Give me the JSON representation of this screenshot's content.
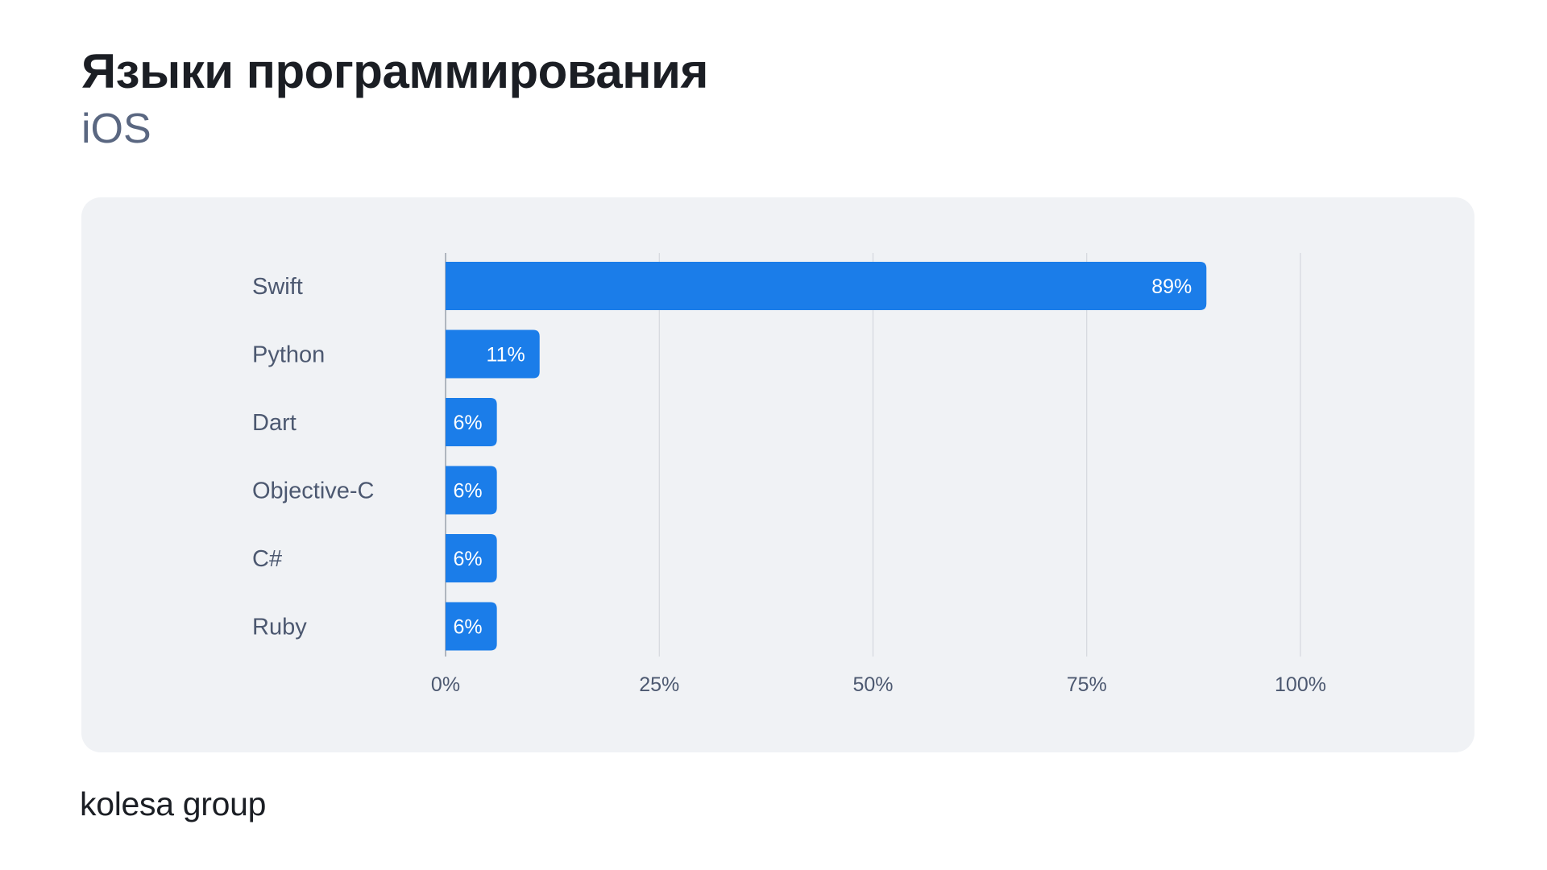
{
  "title": "Языки программирования",
  "subtitle": "iOS",
  "brand": {
    "logo_text": "kolesa group"
  },
  "colors": {
    "bar": "#1b7de9",
    "bar_label": "#ffffff",
    "category_label": "#4c5870",
    "tick_label": "#4c5870",
    "grid": "#cfd3da",
    "card_background": "#f0f2f5"
  },
  "chart_data": {
    "type": "bar",
    "orientation": "horizontal",
    "categories": [
      "Swift",
      "Python",
      "Dart",
      "Objective-C",
      "C#",
      "Ruby"
    ],
    "values": [
      89,
      11,
      6,
      6,
      6,
      6
    ],
    "value_labels": [
      "89%",
      "11%",
      "6%",
      "6%",
      "6%",
      "6%"
    ],
    "title": "Языки программирования",
    "subtitle": "iOS",
    "xlim": [
      0,
      100
    ],
    "x_ticks": [
      0,
      25,
      50,
      75,
      100
    ],
    "x_tick_labels": [
      "0%",
      "25%",
      "50%",
      "75%",
      "100%"
    ],
    "grid": "vertical"
  }
}
